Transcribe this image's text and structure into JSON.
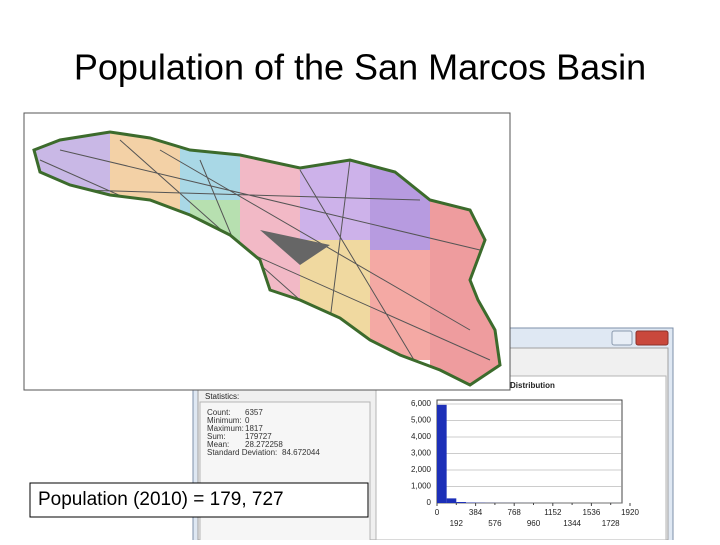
{
  "slide": {
    "title": "Population of the San Marcos Basin",
    "caption": "Population (2010) = 179, 727"
  },
  "dialog": {
    "statistics_title": "Statistics:",
    "statistics": [
      {
        "label": "Count:",
        "value": "6357"
      },
      {
        "label": "Minimum:",
        "value": "0"
      },
      {
        "label": "Maximum:",
        "value": "1817"
      },
      {
        "label": "Sum:",
        "value": "179727"
      },
      {
        "label": "Mean:",
        "value": "28.272258"
      },
      {
        "label": "Standard Deviation:",
        "value": "84.672044"
      }
    ],
    "histogram_title": "Distribution",
    "histogram": {
      "type": "histogram",
      "bins": [
        0,
        96,
        192,
        288,
        384,
        480,
        576,
        672,
        768,
        864,
        960,
        1056,
        1152,
        1248,
        1344,
        1440,
        1536,
        1632,
        1728,
        1824,
        1920
      ],
      "values": [
        5950,
        280,
        60,
        25,
        15,
        8,
        5,
        4,
        3,
        2,
        1,
        1,
        1,
        0,
        0,
        0,
        0,
        0,
        1,
        0
      ],
      "color": "#1c2fb8",
      "ylim": [
        0,
        6000
      ],
      "yticks": [
        0,
        {
          "value": 1000,
          "label": "1,000"
        },
        {
          "value": 2000,
          "label": "2,000"
        },
        {
          "value": 3000,
          "label": "3,000"
        },
        {
          "value": 4000,
          "label": "4,000"
        },
        {
          "value": 5000,
          "label": "5,000"
        },
        {
          "value": 6000,
          "label": "6,000"
        }
      ],
      "xlim": [
        0,
        1920
      ],
      "xticks_top": [
        0,
        384,
        768,
        1152,
        1536,
        1920
      ],
      "xticks_bottom": [
        192,
        576,
        960,
        1344,
        1728
      ]
    }
  }
}
